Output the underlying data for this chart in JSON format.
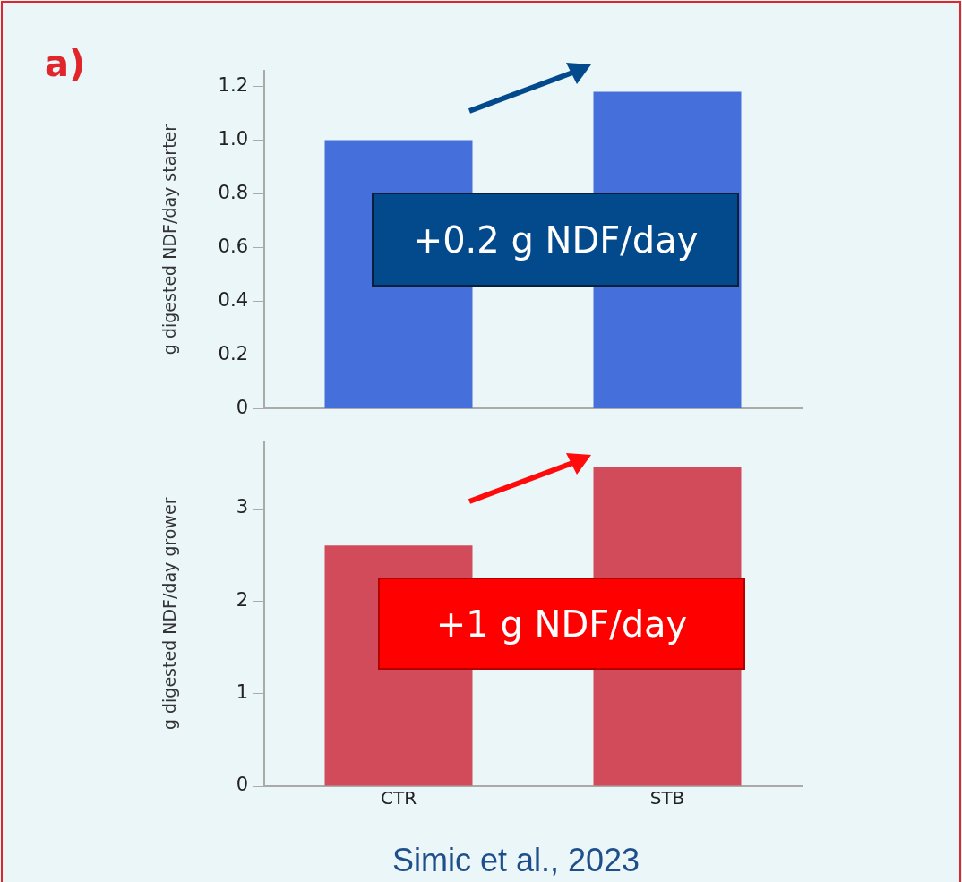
{
  "chart_data": [
    {
      "type": "bar",
      "categories": [
        null,
        null
      ],
      "values": [
        1.0,
        1.18
      ],
      "color": "#4570dc",
      "ylabel": "g digested NDF/day starter",
      "ylim": [
        0,
        1.26
      ],
      "yticks": [
        {
          "value": 0,
          "label": "0"
        },
        0.2,
        0.4,
        0.6,
        0.8,
        {
          "value": 1,
          "label": "1.0"
        },
        1.2
      ],
      "grid": false,
      "legend": false,
      "tick_labels": "y",
      "annotations": [
        "a)",
        "+0.2 g NDF/day"
      ]
    },
    {
      "type": "bar",
      "categories": [
        "CTR",
        "STB"
      ],
      "values": [
        2.6,
        3.45
      ],
      "color": "#d24b5a",
      "ylabel": "g digested NDF/day grower",
      "ylim": [
        0,
        3.73
      ],
      "yticks": [
        0,
        1,
        2,
        3
      ],
      "grid": false,
      "legend": false,
      "annotations": [
        "+1 g NDF/day",
        "Simic et al., 2023"
      ]
    }
  ]
}
